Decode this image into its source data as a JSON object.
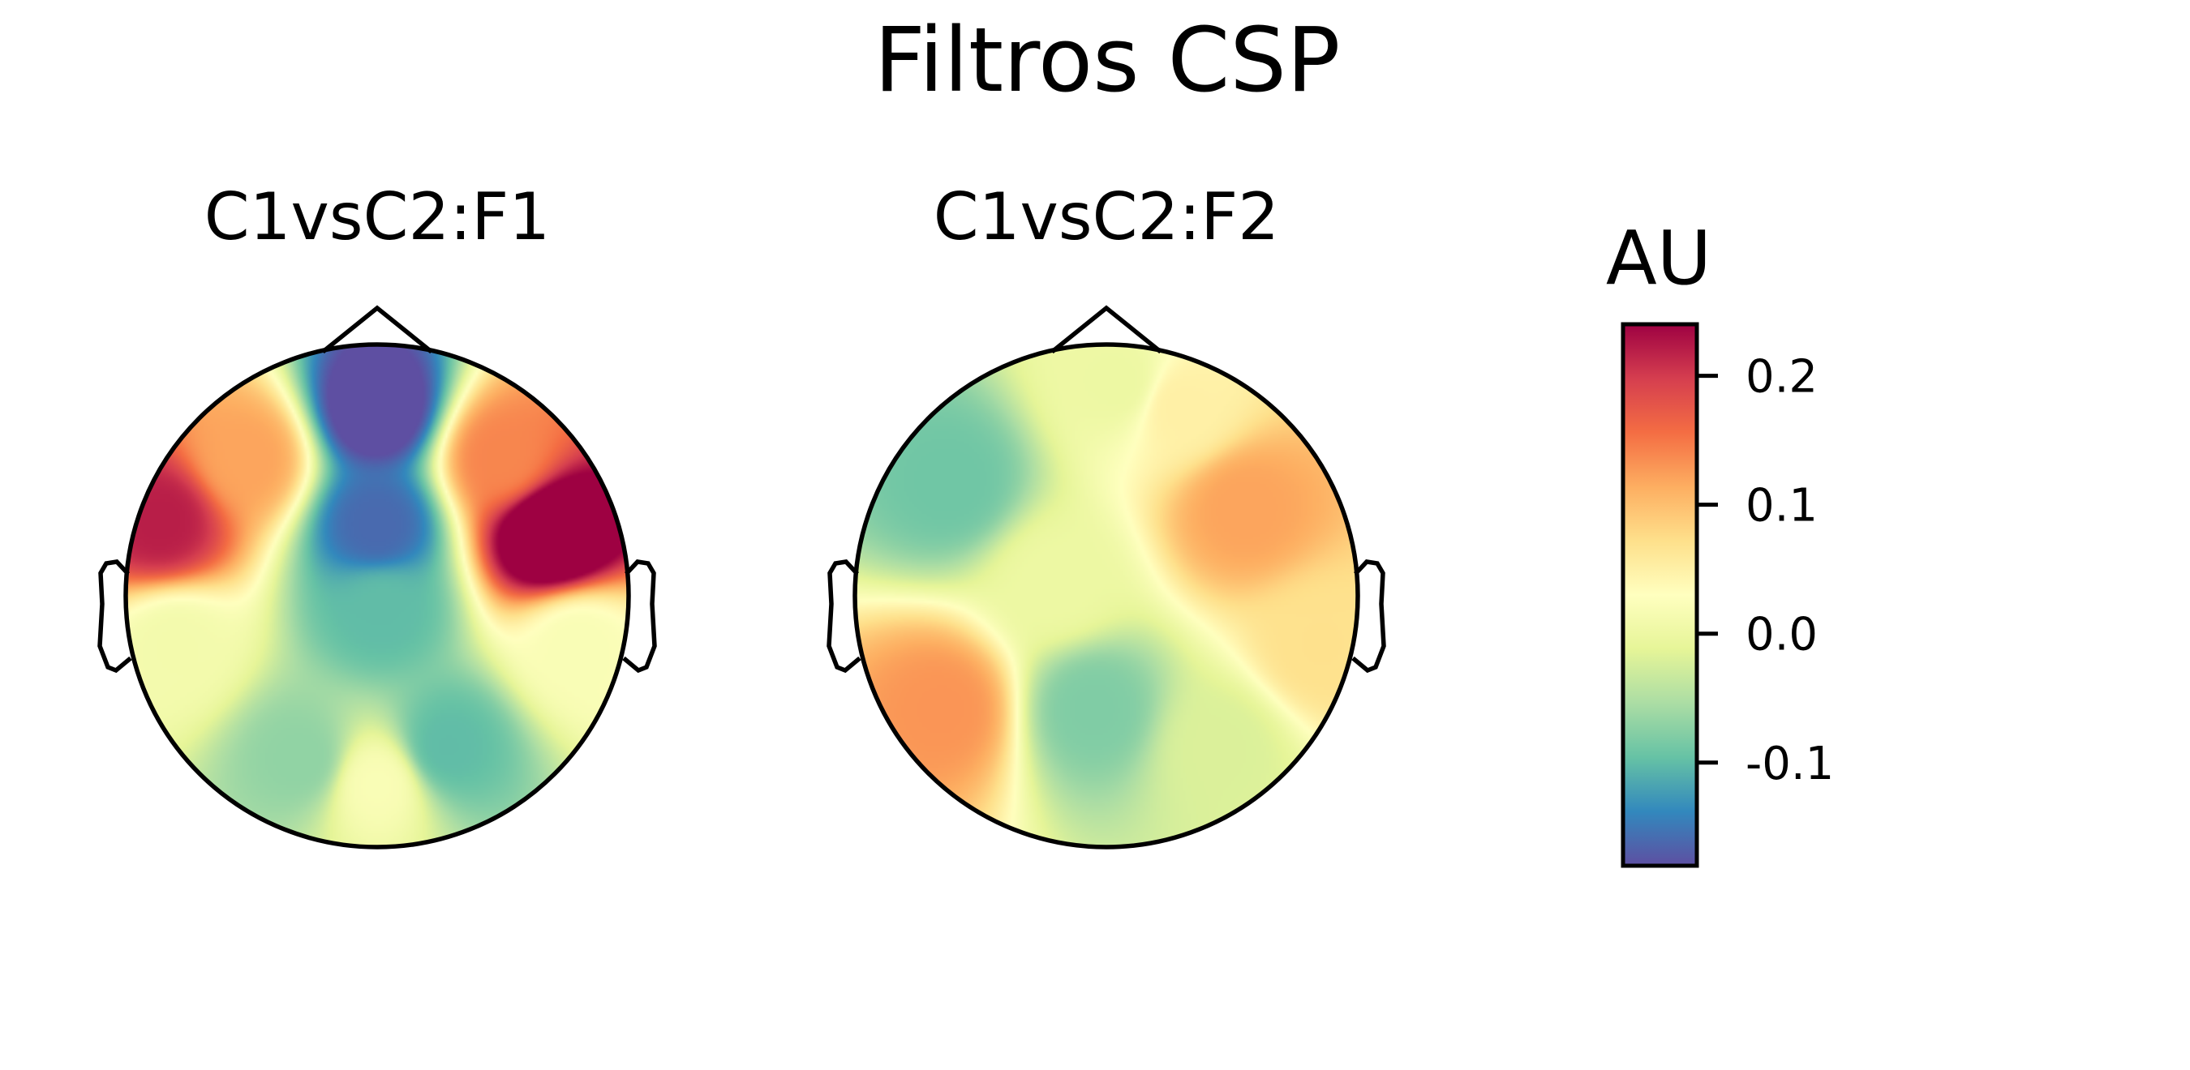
{
  "figure": {
    "title": "Filtros CSP"
  },
  "chart_data": [
    {
      "type": "heatmap",
      "title": "C1vsC2:F1",
      "note_values": "topographic scalp map; normalized head coords (front = +y), weights in AU",
      "sources": [
        {
          "x": -0.86,
          "y": 0.3,
          "v": 0.22
        },
        {
          "x": 0.7,
          "y": 0.25,
          "v": 0.3
        },
        {
          "x": 0.0,
          "y": 0.75,
          "v": -0.2
        },
        {
          "x": 0.0,
          "y": 0.28,
          "v": -0.16
        },
        {
          "x": 0.02,
          "y": -0.05,
          "v": -0.1
        },
        {
          "x": -0.52,
          "y": 0.55,
          "v": 0.12
        },
        {
          "x": 0.5,
          "y": 0.55,
          "v": 0.14
        },
        {
          "x": -0.3,
          "y": -0.65,
          "v": -0.07
        },
        {
          "x": 0.28,
          "y": -0.6,
          "v": -0.1
        },
        {
          "x": 0.0,
          "y": -0.75,
          "v": 0.02
        },
        {
          "x": -0.8,
          "y": -0.2,
          "v": 0.01
        },
        {
          "x": 0.8,
          "y": -0.2,
          "v": 0.02
        }
      ]
    },
    {
      "type": "heatmap",
      "title": "C1vsC2:F2",
      "note_values": "topographic scalp map; normalized head coords (front = +y), weights in AU",
      "sources": [
        {
          "x": -0.62,
          "y": 0.45,
          "v": -0.09
        },
        {
          "x": 0.55,
          "y": 0.35,
          "v": 0.12
        },
        {
          "x": -0.65,
          "y": -0.45,
          "v": 0.13
        },
        {
          "x": -0.05,
          "y": -0.45,
          "v": -0.08
        },
        {
          "x": 0.05,
          "y": 0.85,
          "v": 0.0
        },
        {
          "x": 0.45,
          "y": -0.6,
          "v": -0.02
        },
        {
          "x": 0.85,
          "y": -0.2,
          "v": 0.07
        },
        {
          "x": -0.2,
          "y": 0.05,
          "v": 0.0
        },
        {
          "x": 0.3,
          "y": 0.75,
          "v": 0.05
        }
      ]
    }
  ],
  "colorbar": {
    "label": "AU",
    "colormap": "Spectral_r",
    "vmin": -0.18,
    "vmax": 0.24,
    "ticks": [
      {
        "v": 0.2,
        "label": "0.2"
      },
      {
        "v": 0.1,
        "label": "0.1"
      },
      {
        "v": 0.0,
        "label": "0.0"
      },
      {
        "v": -0.1,
        "label": "-0.1"
      }
    ]
  },
  "colors": {
    "spectral_r": [
      "#5e4fa2",
      "#3288bd",
      "#66c2a5",
      "#abdda4",
      "#e6f598",
      "#ffffbf",
      "#fee08b",
      "#fdae61",
      "#f46d43",
      "#d53e4f",
      "#9e0142"
    ]
  }
}
